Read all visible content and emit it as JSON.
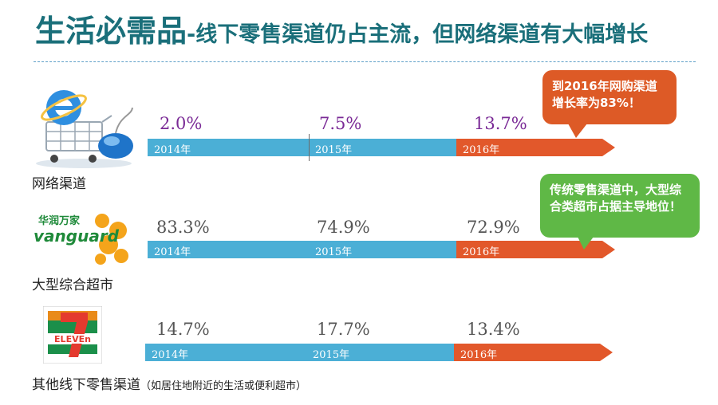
{
  "title": {
    "main": "生活必需品",
    "sub": "-线下零售渠道仍占主流，但网络渠道有大幅增长"
  },
  "rows": [
    {
      "label": "网络渠道",
      "note": "",
      "logo": "internet-shopping-icon",
      "values": [
        "2.0%",
        "7.5%",
        "13.7%"
      ],
      "years": [
        "2014年",
        "2015年",
        "2016年"
      ]
    },
    {
      "label": "大型综合超市",
      "note": "",
      "logo": "vanguard-logo",
      "logo_text_cn": "华润万家",
      "logo_text_en": "vanguard",
      "values": [
        "83.3%",
        "74.9%",
        "72.9%"
      ],
      "years": [
        "2014年",
        "2015年",
        "2016年"
      ]
    },
    {
      "label": "其他线下零售渠道",
      "note": "（如居住地附近的生活或便利超市）",
      "logo": "seven-eleven-logo",
      "logo_text": "ELEVEn",
      "values": [
        "14.7%",
        "17.7%",
        "13.4%"
      ],
      "years": [
        "2014年",
        "2015年",
        "2016年"
      ]
    }
  ],
  "callouts": {
    "online_growth": "到2016年网购渠道增长率为83%！",
    "hypermarket": "传统零售渠道中，大型综合类超市占据主导地位！"
  },
  "colors": {
    "title": "#1a6f7a",
    "bar_blue": "#4bafd6",
    "bar_orange": "#e2582b",
    "callout_red": "#dd5a26",
    "callout_green": "#5fb846"
  }
}
